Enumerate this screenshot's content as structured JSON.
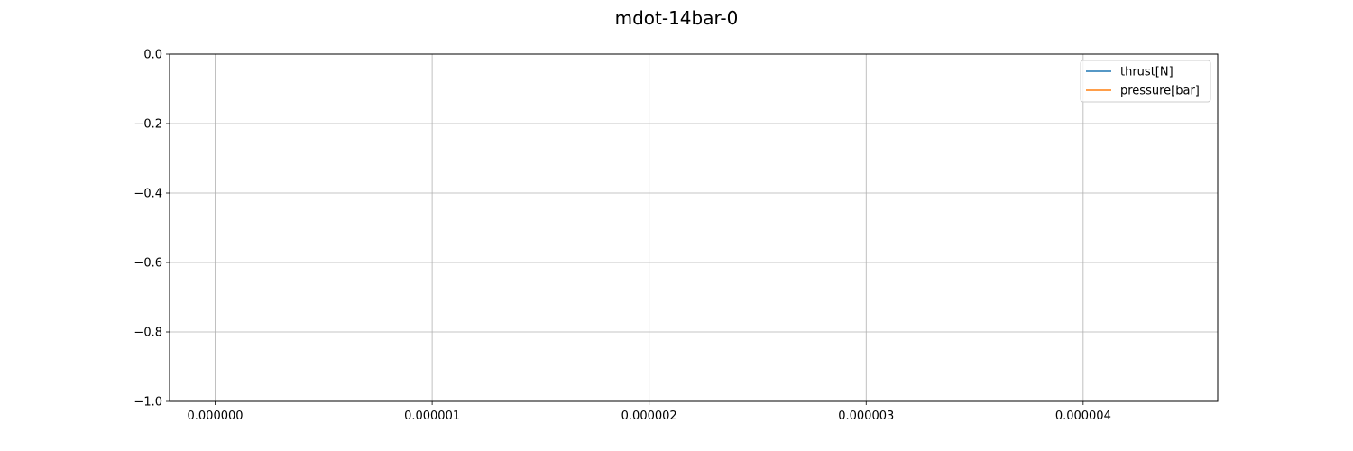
{
  "chart_data": {
    "type": "line",
    "title": "mdot-14bar-0",
    "xlabel": "",
    "ylabel": "",
    "xlim": [
      -2.1e-07,
      4.62e-06
    ],
    "ylim": [
      -1.0,
      0.0
    ],
    "x_ticks": [
      0.0,
      1e-06,
      2e-06,
      3e-06,
      4e-06
    ],
    "x_tick_labels": [
      "0.000000",
      "0.000001",
      "0.000002",
      "0.000003",
      "0.000004"
    ],
    "y_ticks": [
      0.0,
      -0.2,
      -0.4,
      -0.6,
      -0.8,
      -1.0
    ],
    "y_tick_labels": [
      "0.0",
      "−0.2",
      "−0.4",
      "−0.6",
      "−0.8",
      "−1.0"
    ],
    "grid": true,
    "legend_position": "top-right",
    "series": [
      {
        "name": "thrust[N]",
        "color": "#1f77b4",
        "x": [],
        "y": []
      },
      {
        "name": "pressure[bar]",
        "color": "#ff7f0e",
        "x": [],
        "y": []
      }
    ]
  }
}
